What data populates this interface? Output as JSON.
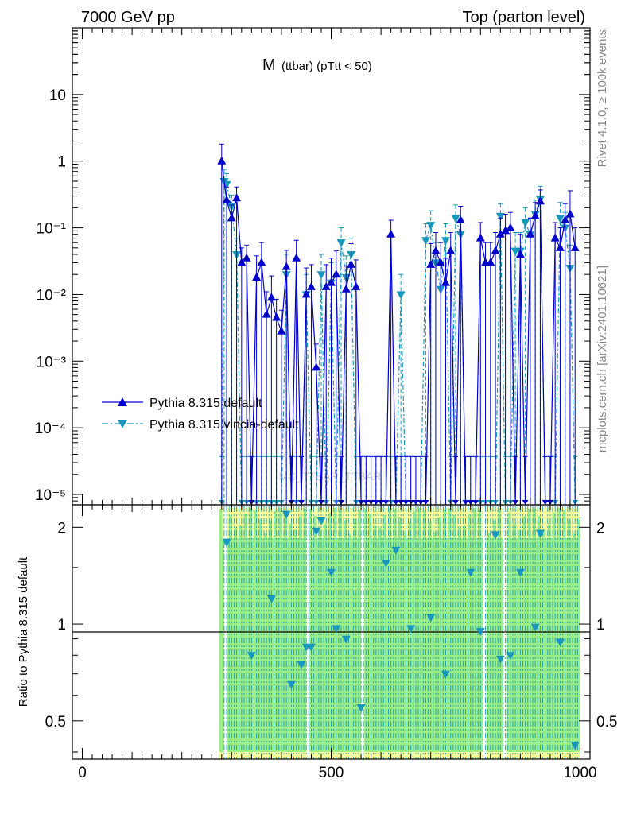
{
  "header": {
    "left": "7000 GeV pp",
    "right": "Top (parton level)"
  },
  "side_labels": {
    "rivet": "Rivet 4.1.0, ≥ 100k events",
    "mcplots": "mcplots.cern.ch [arXiv:2401.10621]"
  },
  "watermark": "MC_TTBAR_TTBAR",
  "colors": {
    "default": "#0000cc",
    "vincia": "#1797bb",
    "band_yellow": "#ffff99",
    "band_green": "#99ee88"
  },
  "chart_data": [
    {
      "type": "line",
      "title": "M (ttbar) (pT̅tt < 50)",
      "title_main": "M",
      "title_sub": "(ttbar) (pTtt < 50)",
      "xlabel": "",
      "ylabel": "",
      "xlim": [
        -20,
        1020
      ],
      "ylim": [
        7e-06,
        100
      ],
      "log_y": true,
      "grid": false,
      "legend_position": "lower-left",
      "y_tick_labels": [
        "10",
        "1",
        "10⁻¹",
        "10⁻²",
        "10⁻³",
        "10⁻⁴",
        "10⁻⁵"
      ],
      "series": [
        {
          "name": "Pythia 8.315 default",
          "style": "solid",
          "marker": "triangle-up",
          "x": [
            280,
            290,
            300,
            310,
            320,
            330,
            340,
            350,
            360,
            370,
            380,
            390,
            400,
            410,
            420,
            430,
            440,
            450,
            460,
            470,
            480,
            490,
            500,
            510,
            520,
            530,
            540,
            550,
            560,
            570,
            580,
            590,
            600,
            610,
            620,
            630,
            640,
            650,
            660,
            670,
            680,
            690,
            700,
            710,
            720,
            730,
            740,
            750,
            760,
            770,
            780,
            790,
            800,
            810,
            820,
            830,
            840,
            850,
            860,
            870,
            880,
            890,
            900,
            910,
            920,
            930,
            940,
            950,
            960,
            970,
            980,
            990
          ],
          "y": [
            1.0,
            0.26,
            0.14,
            0.28,
            0.03,
            0.035,
            7e-06,
            0.018,
            0.03,
            0.005,
            0.009,
            0.0045,
            0.0028,
            0.026,
            7e-06,
            0.035,
            7e-06,
            0.01,
            0.013,
            0.0008,
            7e-06,
            0.013,
            0.015,
            0.02,
            7e-06,
            0.012,
            0.028,
            0.013,
            7e-06,
            7e-06,
            7e-06,
            7e-06,
            7e-06,
            7e-06,
            0.08,
            7e-06,
            7e-06,
            7e-06,
            7e-06,
            7e-06,
            7e-06,
            7e-06,
            0.028,
            0.045,
            0.03,
            0.015,
            0.045,
            7e-06,
            0.13,
            7e-06,
            7e-06,
            7e-06,
            0.07,
            0.03,
            0.03,
            0.045,
            0.08,
            0.09,
            0.1,
            7e-06,
            0.04,
            7e-06,
            0.08,
            0.15,
            0.25,
            7e-06,
            7e-06,
            0.07,
            0.05,
            0.13,
            0.16,
            0.05
          ],
          "err_up": [
            0.8,
            0.15,
            0.08,
            0.13,
            0.02,
            0.02,
            3e-05,
            0.02,
            0.03,
            0.006,
            0.01,
            0.004,
            0.003,
            0.02,
            3e-05,
            0.03,
            3e-05,
            0.015,
            0.015,
            0.001,
            3e-05,
            0.015,
            0.02,
            0.025,
            3e-05,
            0.015,
            0.03,
            0.02,
            3e-05,
            3e-05,
            3e-05,
            3e-05,
            3e-05,
            3e-05,
            0.05,
            3e-05,
            3e-05,
            3e-05,
            3e-05,
            3e-05,
            3e-05,
            3e-05,
            0.03,
            0.04,
            0.03,
            0.02,
            0.04,
            3e-05,
            0.08,
            3e-05,
            3e-05,
            3e-05,
            0.05,
            0.03,
            0.03,
            0.04,
            0.06,
            0.07,
            0.07,
            3e-05,
            0.04,
            3e-05,
            0.06,
            0.09,
            0.12,
            3e-05,
            3e-05,
            0.05,
            0.05,
            0.1,
            0.2,
            0.05
          ]
        },
        {
          "name": "Pythia 8.315 vincia-default",
          "style": "dash-dot",
          "marker": "triangle-down",
          "x": [
            280,
            285,
            290,
            300,
            310,
            320,
            330,
            340,
            350,
            360,
            370,
            380,
            390,
            400,
            410,
            420,
            430,
            440,
            450,
            460,
            470,
            480,
            490,
            500,
            510,
            520,
            530,
            540,
            550,
            560,
            570,
            580,
            590,
            600,
            610,
            620,
            630,
            640,
            650,
            660,
            670,
            680,
            690,
            700,
            710,
            720,
            730,
            740,
            750,
            760,
            770,
            780,
            790,
            800,
            810,
            820,
            830,
            840,
            850,
            860,
            870,
            880,
            890,
            900,
            910,
            920,
            930,
            940,
            950,
            960,
            970,
            980,
            990
          ],
          "y": [
            7e-06,
            0.5,
            0.45,
            0.21,
            0.04,
            7e-06,
            7e-06,
            7e-06,
            7e-06,
            7e-06,
            7e-06,
            7e-06,
            7e-06,
            7e-06,
            0.02,
            7e-06,
            7e-06,
            7e-06,
            0.01,
            7e-06,
            7e-06,
            0.02,
            7e-06,
            0.015,
            7e-06,
            0.06,
            0.018,
            0.04,
            7e-06,
            7e-06,
            7e-06,
            7e-06,
            7e-06,
            7e-06,
            7e-06,
            7e-06,
            7e-06,
            0.01,
            7e-06,
            7e-06,
            7e-06,
            7e-06,
            0.065,
            0.11,
            0.03,
            0.012,
            0.065,
            7e-06,
            0.14,
            0.08,
            7e-06,
            7e-06,
            7e-06,
            7e-06,
            7e-06,
            7e-06,
            7e-06,
            0.15,
            7e-06,
            7e-06,
            0.045,
            0.045,
            0.12,
            0.08,
            0.16,
            0.27,
            7e-06,
            7e-06,
            7e-06,
            0.14,
            0.1,
            0.025,
            7e-06
          ],
          "err_up": [
            3e-05,
            0.25,
            0.2,
            0.1,
            0.03,
            3e-05,
            3e-05,
            3e-05,
            3e-05,
            3e-05,
            3e-05,
            3e-05,
            3e-05,
            3e-05,
            0.02,
            3e-05,
            3e-05,
            3e-05,
            0.01,
            3e-05,
            3e-05,
            0.02,
            3e-05,
            0.015,
            3e-05,
            0.04,
            0.02,
            0.03,
            3e-05,
            3e-05,
            3e-05,
            3e-05,
            3e-05,
            3e-05,
            3e-05,
            3e-05,
            3e-05,
            0.01,
            3e-05,
            3e-05,
            3e-05,
            3e-05,
            0.05,
            0.07,
            0.03,
            0.015,
            0.05,
            3e-05,
            0.08,
            0.06,
            3e-05,
            3e-05,
            3e-05,
            3e-05,
            3e-05,
            3e-05,
            3e-05,
            0.08,
            3e-05,
            3e-05,
            0.04,
            0.04,
            0.08,
            0.06,
            0.1,
            0.15,
            3e-05,
            3e-05,
            3e-05,
            0.1,
            0.07,
            0.03,
            3e-05
          ]
        }
      ]
    },
    {
      "type": "line",
      "ylabel": "Ratio to Pythia 8.315 default",
      "xlabel": "",
      "xlim": [
        -20,
        1020
      ],
      "ylim": [
        0.38,
        2.35
      ],
      "log_y": true,
      "grid": false,
      "reference_line": 1,
      "x_tick_labels": [
        "0",
        "500",
        "1000"
      ],
      "y_tick_labels": [
        "2",
        "1",
        "0.5"
      ],
      "band": {
        "x_start": 275,
        "x_end": 1000,
        "green_low": 0.4,
        "green_high": 1.85,
        "yellow_high": 2.3
      },
      "series": [
        {
          "name": "Pythia 8.315 vincia-default",
          "x": [
            290,
            340,
            380,
            410,
            420,
            440,
            450,
            460,
            470,
            480,
            500,
            510,
            530,
            560,
            610,
            630,
            660,
            700,
            730,
            780,
            800,
            830,
            840,
            860,
            880,
            910,
            920,
            960,
            990
          ],
          "y": [
            1.8,
            0.8,
            1.2,
            2.2,
            0.65,
            0.75,
            0.85,
            0.85,
            1.95,
            2.1,
            1.45,
            0.97,
            0.9,
            0.55,
            1.55,
            1.7,
            0.97,
            1.05,
            0.7,
            1.45,
            0.95,
            1.9,
            0.78,
            0.8,
            1.45,
            0.98,
            1.92,
            0.88,
            0.42
          ]
        }
      ]
    }
  ]
}
